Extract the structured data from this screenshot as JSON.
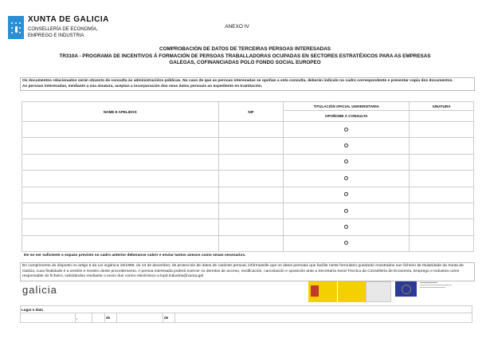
{
  "header": {
    "org_name": "XUNTA DE GALICIA",
    "department_line1": "CONSELLERÍA DE ECONOMÍA,",
    "department_line2": "EMPREGO E INDUSTRIA",
    "annex": "ANEXO IV"
  },
  "titles": {
    "line1": "COMPROBACIÓN DE DATOS DE TERCEIRAS PERSOAS INTERESADAS",
    "line2": "TR310A - PROGRAMA DE INCENTIVOS Á FORMACIÓN DE PERSOAS TRABALLADORAS OCUPADAS EN SECTORES ESTRATÉXICOS PARA AS EMPRESAS",
    "line3": "GALEGAS, COFINANCIADAS POLO FONDO SOCIAL EUROPEO"
  },
  "notice": {
    "para1": "Os documentos relacionados serán obxecto de consulta ás administracións públicas. No caso de que as persoas interesadas se opoñan a esta consulta, deberán indicalo no cadro correspondente e presentar copia dos documentos.",
    "para2": "As persoas interesadas, mediante a súa sinatura, aceptan a incorporación dos seus datos persoais ao expediente en tramitación."
  },
  "table": {
    "col_name": "NOME E APELIDOS",
    "col_nif": "NIF",
    "col_titulacion": "TITULACIÓN OFICIAL UNIVERSITARIA",
    "col_oposicion": "OPOÑOME Á CONSULTA",
    "col_sinatura": "SINATURA",
    "rows": [
      {
        "name": "",
        "nif": "",
        "oposicion_checked": false,
        "sinatura": ""
      },
      {
        "name": "",
        "nif": "",
        "oposicion_checked": false,
        "sinatura": ""
      },
      {
        "name": "",
        "nif": "",
        "oposicion_checked": false,
        "sinatura": ""
      },
      {
        "name": "",
        "nif": "",
        "oposicion_checked": false,
        "sinatura": ""
      },
      {
        "name": "",
        "nif": "",
        "oposicion_checked": false,
        "sinatura": ""
      },
      {
        "name": "",
        "nif": "",
        "oposicion_checked": false,
        "sinatura": ""
      },
      {
        "name": "",
        "nif": "",
        "oposicion_checked": false,
        "sinatura": ""
      },
      {
        "name": "",
        "nif": "",
        "oposicion_checked": false,
        "sinatura": ""
      }
    ]
  },
  "note": "De no ser suficiente o espazo previsto no cadro anterior deberanse cubrir e enviar tantos anexos como sexan necesarios.",
  "privacy": "En cumprimento do disposto no artigo 5 da Lei orgánica 15/1999, do 13 de decembro, de protección de datos de carácter persoal, infórmaselle que os datos persoais que facilite neste formulario quedarán rexistrados nun ficheiro de titularidade da Xunta de Galicia, cuxa finalidade é a xestión e rexistro deste procedemento. A persoa interesada poderá exercer os dereitos de acceso, rectificación, cancelación e oposición ante a Secretaría Xeral Técnica da Consellería de Economía, Emprego e Industria como responsable do ficheiro, solicitándoo mediante o envío dun correo electrónico a lopd.industria@xunta.gal",
  "footer_logos": {
    "galicia": "galicia"
  },
  "signature": {
    "lugar_label": "Lugar e data",
    "comma": ",",
    "de1": "de",
    "de2": "de"
  },
  "colors": {
    "xunta_blue": "#2a8fd6",
    "spain_yellow": "#f5d000",
    "eu_blue": "#2b3a98"
  }
}
